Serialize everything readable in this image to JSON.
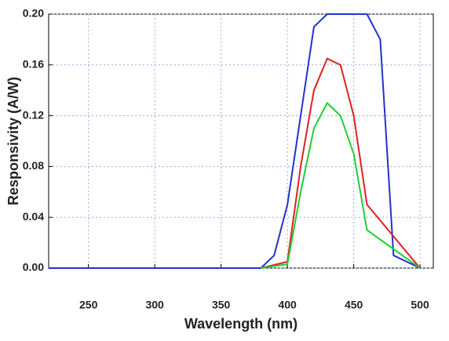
{
  "chart_data": {
    "type": "line",
    "x_label": "Wavelength (nm)",
    "y_label": "Responsivity (A/W)",
    "xlim": [
      220,
      510
    ],
    "xticks": [
      250,
      300,
      350,
      400,
      450,
      500
    ],
    "ylim": [
      0,
      0.2
    ],
    "yticks": [
      {
        "value": 0,
        "label": "0.00"
      },
      {
        "value": 0.04,
        "label": "0.04"
      },
      {
        "value": 0.08,
        "label": "0.08"
      },
      {
        "value": 0.12,
        "label": "0.12"
      },
      {
        "value": 0.16,
        "label": "0.16"
      },
      {
        "value": 0.2,
        "label": "0.20"
      }
    ],
    "grid": true,
    "series": [
      {
        "color": "#2233cc",
        "x": [
          220,
          380,
          390,
          400,
          410,
          420,
          430,
          440,
          450,
          460,
          470,
          480,
          500
        ],
        "values": [
          0,
          0,
          0.01,
          0.05,
          0.12,
          0.19,
          0.2,
          0.2,
          0.2,
          0.2,
          0.18,
          0.01,
          0
        ]
      },
      {
        "color": "#e02020",
        "x": [
          380,
          400,
          410,
          420,
          430,
          440,
          450,
          460,
          500
        ],
        "values": [
          0,
          0.005,
          0.08,
          0.14,
          0.165,
          0.16,
          0.12,
          0.05,
          0
        ]
      },
      {
        "color": "#22cc33",
        "x": [
          380,
          400,
          410,
          420,
          430,
          440,
          450,
          460,
          500
        ],
        "values": [
          0,
          0.003,
          0.06,
          0.11,
          0.13,
          0.12,
          0.09,
          0.03,
          0
        ]
      }
    ]
  }
}
